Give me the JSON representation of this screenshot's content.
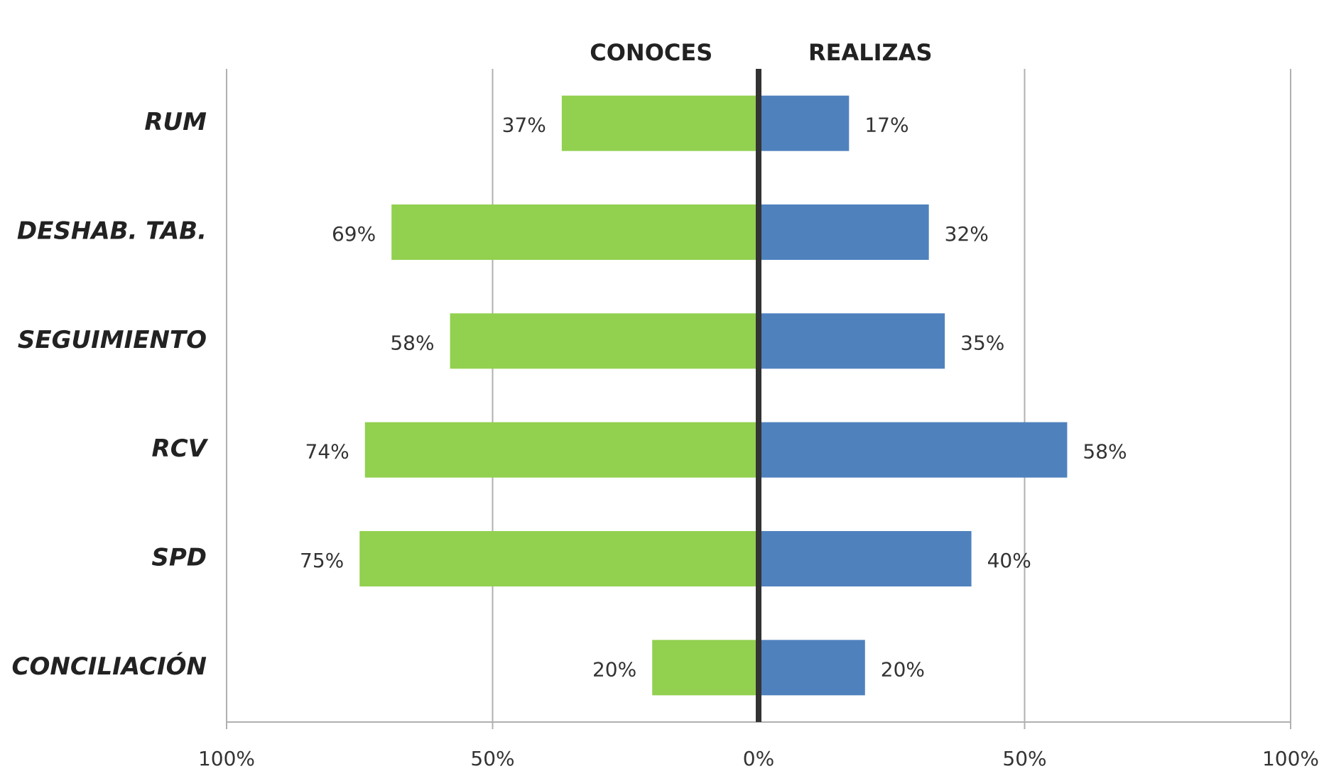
{
  "chart_data": {
    "type": "butterfly",
    "categories": [
      "RUM",
      "DESHAB. TAB.",
      "SEGUIMIENTO",
      "RCV",
      "SPD",
      "CONCILIACIÓN"
    ],
    "series": [
      {
        "name": "CONOCES",
        "color": "#92d050",
        "side": "left",
        "values": [
          37,
          69,
          58,
          74,
          75,
          20
        ],
        "value_labels": [
          "37%",
          "69%",
          "58%",
          "74%",
          "75%",
          "20%"
        ]
      },
      {
        "name": "REALIZAS",
        "color": "#4f81bd",
        "side": "right",
        "values": [
          17,
          32,
          35,
          58,
          40,
          20
        ],
        "value_labels": [
          "17%",
          "32%",
          "35%",
          "58%",
          "40%",
          "20%"
        ]
      }
    ],
    "xlim": [
      -100,
      100
    ],
    "xticks": [
      {
        "value": -100,
        "label": "100%"
      },
      {
        "value": -50,
        "label": "50%"
      },
      {
        "value": 0,
        "label": "0%"
      },
      {
        "value": 50,
        "label": "50%"
      },
      {
        "value": 100,
        "label": "100%"
      }
    ],
    "grid": true
  }
}
